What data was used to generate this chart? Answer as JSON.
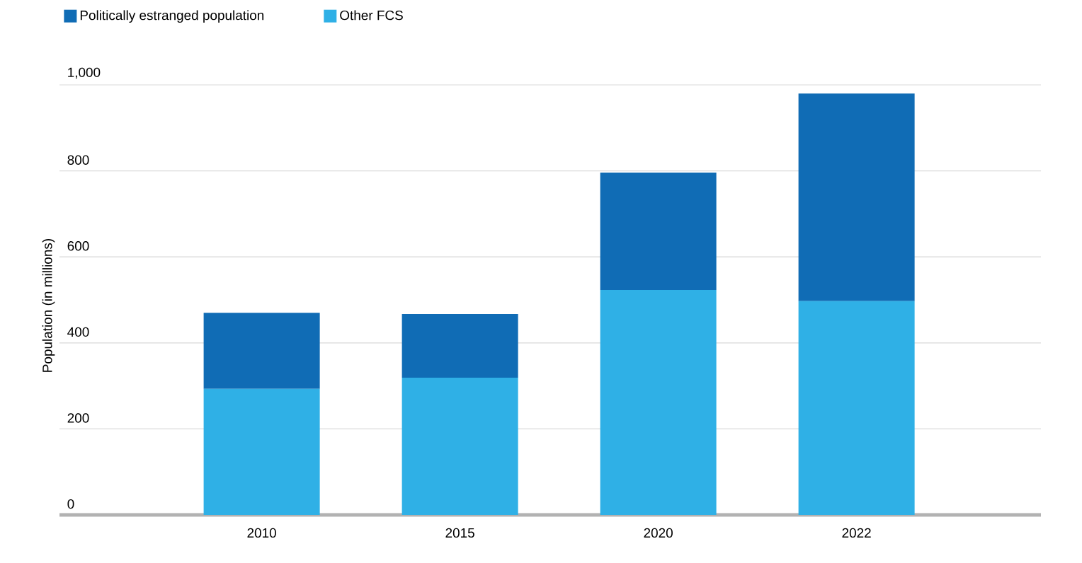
{
  "chart_data": {
    "type": "bar",
    "stacked": true,
    "ylabel": "Population (in millions)",
    "categories": [
      "2010",
      "2015",
      "2020",
      "2022"
    ],
    "series": [
      {
        "name": "Other FCS",
        "color": "#2fb0e6",
        "values": [
          293,
          319,
          523,
          497
        ]
      },
      {
        "name": "Politically estranged population",
        "color": "#106cb5",
        "values": [
          177,
          148,
          273,
          483
        ]
      }
    ],
    "ylim": [
      0,
      1000
    ],
    "yticks": [
      0,
      200,
      400,
      600,
      800,
      {
        "value": 1000,
        "label": "1,000"
      }
    ],
    "grid": "y",
    "legend": "top left"
  }
}
